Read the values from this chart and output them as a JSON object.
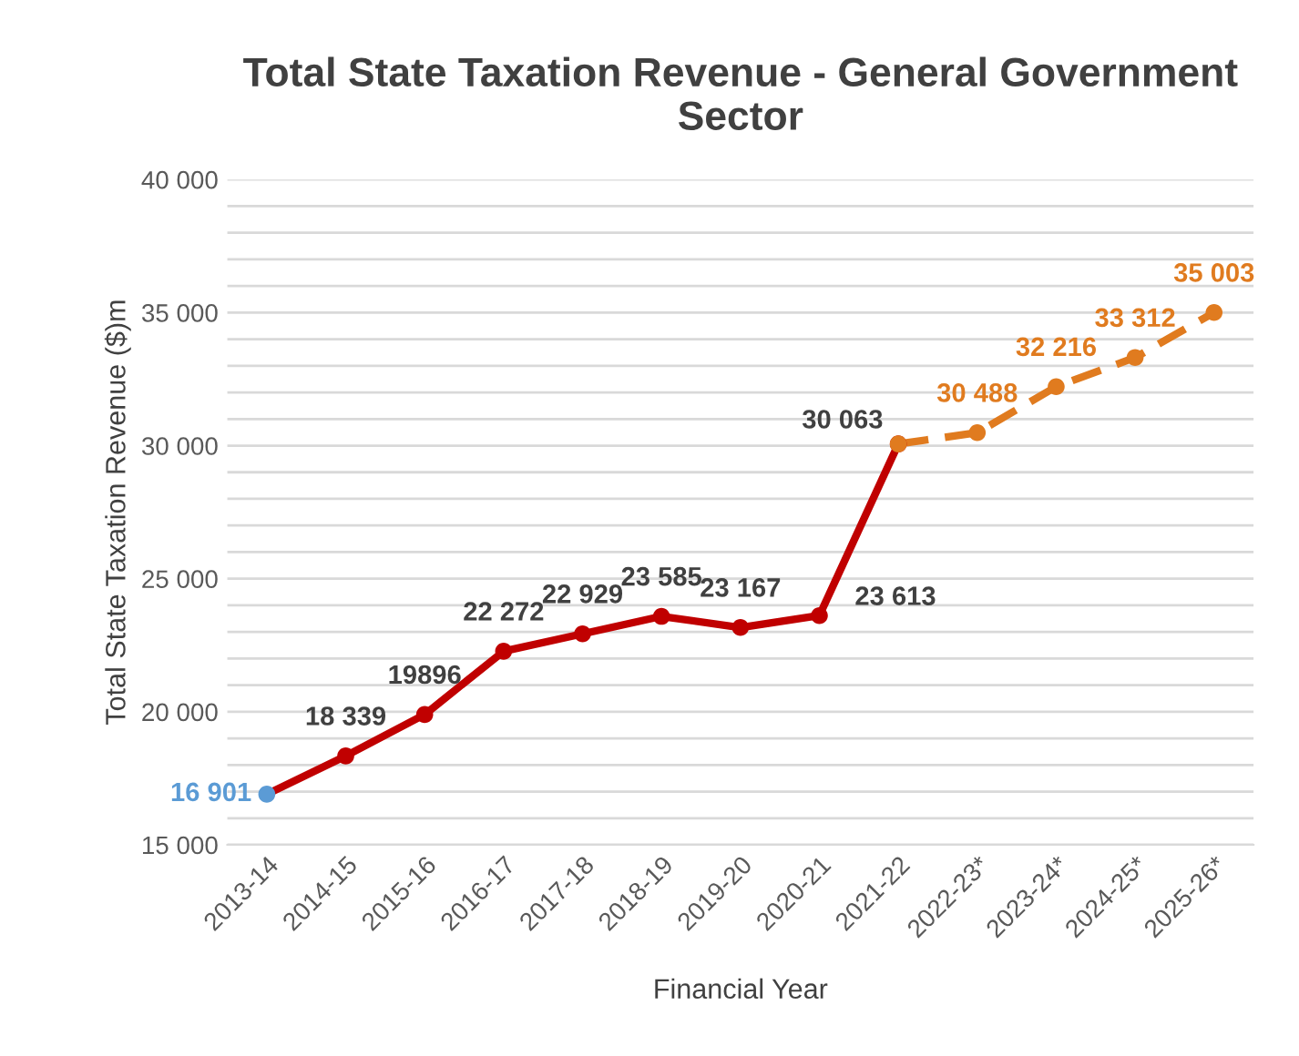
{
  "chart_data": {
    "type": "line",
    "title": "Total State Taxation Revenue - General Government Sector",
    "xlabel": "Financial Year",
    "ylabel": "Total State Taxation Revenue ($)m",
    "categories": [
      "2013-14",
      "2014-15",
      "2015-16",
      "2016-17",
      "2017-18",
      "2018-19",
      "2019-20",
      "2020-21",
      "2021-22",
      "2022-23*",
      "2023-24*",
      "2024-25*",
      "2025-26*"
    ],
    "series": [
      {
        "color": "#c00000",
        "colors": [
          "#5b9bd5",
          "#c00000",
          "#c00000",
          "#c00000",
          "#c00000",
          "#c00000",
          "#c00000",
          "#c00000",
          "#c00000",
          "#c00000",
          "#c00000",
          "#c00000",
          "#c00000"
        ],
        "line_style": "solid",
        "values": [
          16901,
          18339,
          19896,
          22272,
          22929,
          23585,
          23167,
          23613,
          30063,
          null,
          null,
          null,
          null
        ],
        "value_labels": [
          "16 901",
          "18 339",
          "19896",
          "22 272",
          "22 929",
          "23 585",
          "23 167",
          "23 613",
          "30 063",
          null,
          null,
          null,
          null
        ]
      },
      {
        "color": "#e07b1f",
        "line_style": "dashed",
        "values": [
          null,
          null,
          null,
          null,
          null,
          null,
          null,
          null,
          30063,
          30488,
          32216,
          33312,
          35003
        ],
        "value_labels": [
          null,
          null,
          null,
          null,
          null,
          null,
          null,
          null,
          null,
          "30 488",
          "32 216",
          "33 312",
          "35 003"
        ]
      }
    ],
    "marker": "circle",
    "grid": "y",
    "legend": false,
    "ylim": [
      15000,
      40000
    ],
    "yticks": [
      {
        "value": 15000,
        "label": "15 000"
      },
      {
        "value": 16000,
        "label": null
      },
      {
        "value": 17000,
        "label": null
      },
      {
        "value": 18000,
        "label": null
      },
      {
        "value": 19000,
        "label": null
      },
      {
        "value": 20000,
        "label": "20 000"
      },
      {
        "value": 21000,
        "label": null
      },
      {
        "value": 22000,
        "label": null
      },
      {
        "value": 23000,
        "label": null
      },
      {
        "value": 24000,
        "label": null
      },
      {
        "value": 25000,
        "label": "25 000"
      },
      {
        "value": 26000,
        "label": null
      },
      {
        "value": 27000,
        "label": null
      },
      {
        "value": 28000,
        "label": null
      },
      {
        "value": 29000,
        "label": null
      },
      {
        "value": 30000,
        "label": "30 000"
      },
      {
        "value": 31000,
        "label": null
      },
      {
        "value": 32000,
        "label": null
      },
      {
        "value": 33000,
        "label": null
      },
      {
        "value": 34000,
        "label": null
      },
      {
        "value": 35000,
        "label": "35 000"
      },
      {
        "value": 36000,
        "label": null
      },
      {
        "value": 37000,
        "label": null
      },
      {
        "value": 38000,
        "label": null
      },
      {
        "value": 39000,
        "label": null
      },
      {
        "value": 40000,
        "label": "40 000"
      }
    ]
  }
}
